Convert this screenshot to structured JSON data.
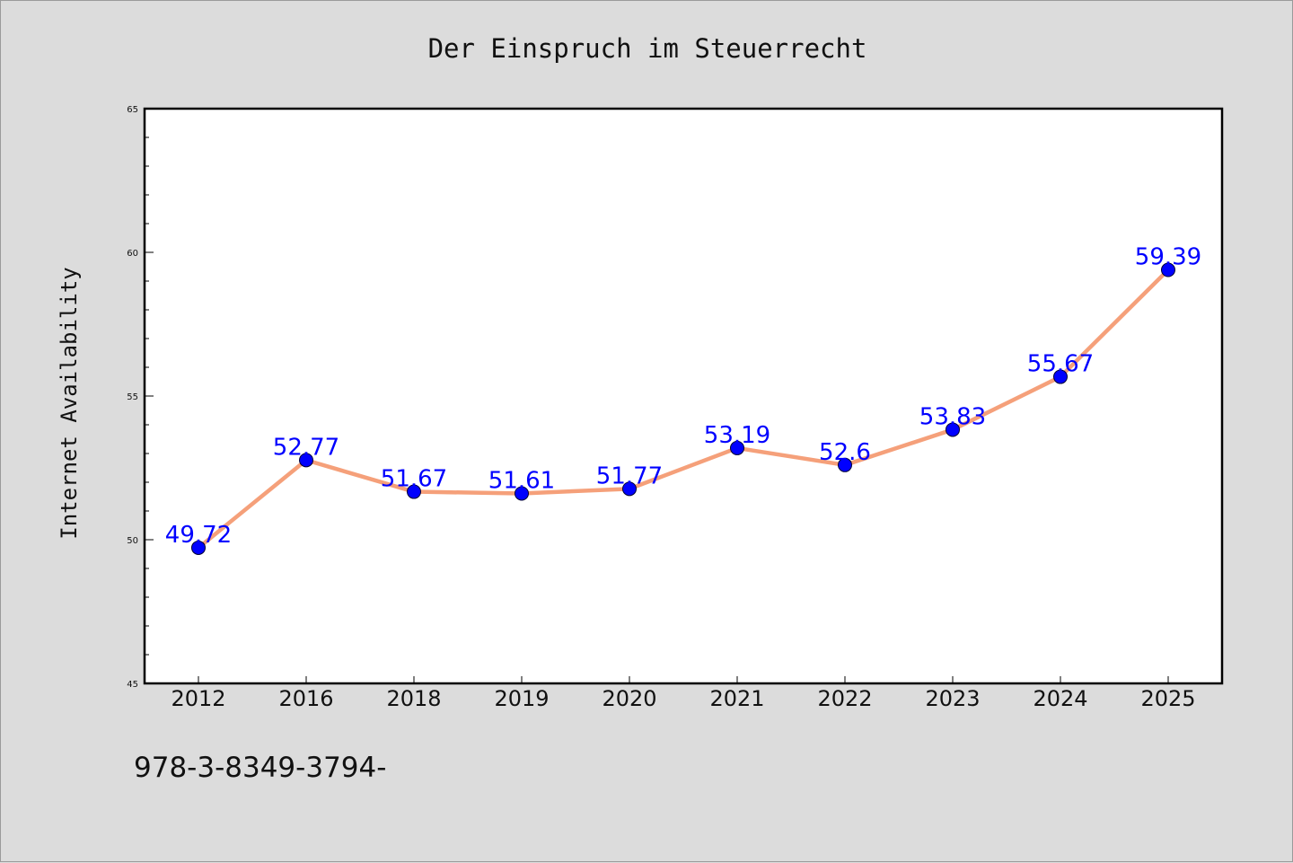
{
  "chart_data": {
    "type": "line",
    "title": "Der Einspruch im Steuerrecht",
    "xlabel": "",
    "ylabel": "Internet Availability",
    "categories": [
      "2012",
      "2016",
      "2018",
      "2019",
      "2020",
      "2021",
      "2022",
      "2023",
      "2024",
      "2025"
    ],
    "series": [
      {
        "values": [
          49.72,
          52.77,
          51.67,
          51.61,
          51.77,
          53.19,
          52.6,
          53.83,
          55.67,
          59.39
        ],
        "data_labels": [
          "49.72",
          "52.77",
          "51.67",
          "51.61",
          "51.77",
          "53.19",
          "52.6",
          "53.83",
          "55.67",
          "59.39"
        ],
        "line_color": "#f5a07a",
        "marker_color": "#0000ff"
      }
    ],
    "ylim": [
      45,
      65
    ],
    "yticks": [
      "45",
      "50",
      "55",
      "60",
      "65"
    ],
    "grid": false,
    "legend": "none",
    "plot_background": "#ffffff",
    "page_background": "#dcdcdc"
  },
  "footnote": "978-3-8349-3794-"
}
